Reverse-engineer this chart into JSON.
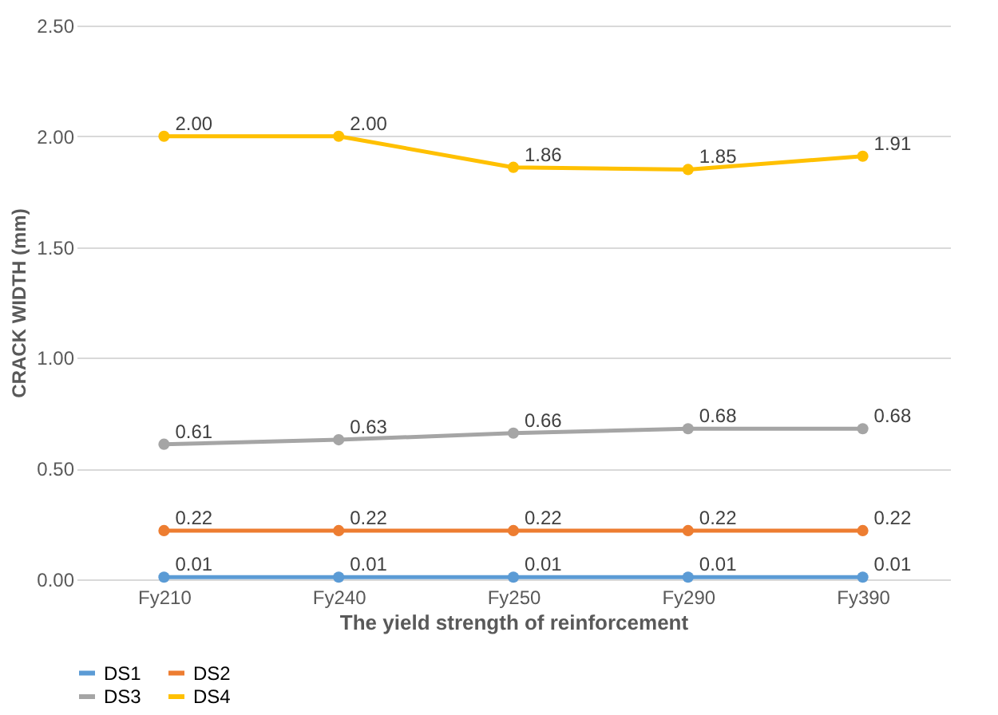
{
  "chart_data": {
    "type": "line",
    "xlabel": "The yield strength of reinforcement",
    "ylabel": "CRACK WIDTH (mm)",
    "categories": [
      "Fy210",
      "Fy240",
      "Fy250",
      "Fy290",
      "Fy390"
    ],
    "series": [
      {
        "name": "DS1",
        "color": "#5b9bd5",
        "values": [
          0.01,
          0.01,
          0.01,
          0.01,
          0.01
        ],
        "value_labels": [
          "0.01",
          "0.01",
          "0.01",
          "0.01",
          "0.01"
        ]
      },
      {
        "name": "DS2",
        "color": "#ed7d31",
        "values": [
          0.22,
          0.22,
          0.22,
          0.22,
          0.22
        ],
        "value_labels": [
          "0.22",
          "0.22",
          "0.22",
          "0.22",
          "0.22"
        ]
      },
      {
        "name": "DS3",
        "color": "#a5a5a5",
        "values": [
          0.61,
          0.63,
          0.66,
          0.68,
          0.68
        ],
        "value_labels": [
          "0.61",
          "0.63",
          "0.66",
          "0.68",
          "0.68"
        ]
      },
      {
        "name": "DS4",
        "color": "#ffc000",
        "values": [
          2.0,
          2.0,
          1.86,
          1.85,
          1.91
        ],
        "value_labels": [
          "2.00",
          "2.00",
          "1.86",
          "1.85",
          "1.91"
        ]
      }
    ],
    "ylim": [
      0,
      2.5
    ],
    "yticks": [
      {
        "value": 0,
        "label": "0.00"
      },
      {
        "value": 0.5,
        "label": "0.50"
      },
      {
        "value": 1.0,
        "label": "1.00"
      },
      {
        "value": 1.5,
        "label": "1.50"
      },
      {
        "value": 2.0,
        "label": "2.00"
      },
      {
        "value": 2.5,
        "label": "2.50"
      }
    ],
    "grid": "y",
    "legend": "bottom",
    "marker": "circle",
    "line_style": "solid"
  }
}
